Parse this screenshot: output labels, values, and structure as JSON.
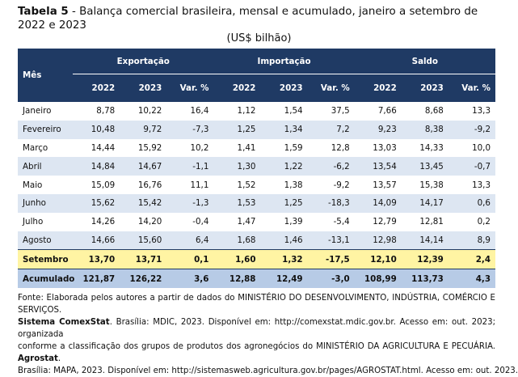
{
  "header": {
    "label": "Tabela 5",
    "title": " - Balança comercial brasileira, mensal e acumulado, janeiro a setembro de 2022 e 2023",
    "unit": "(US$ bilhão)"
  },
  "table": {
    "month_header": "Mês",
    "groups": [
      {
        "name": "Exportação",
        "columns": [
          "2022",
          "2023",
          "Var. %"
        ]
      },
      {
        "name": "Importação",
        "columns": [
          "2022",
          "2023",
          "Var. %"
        ]
      },
      {
        "name": "Saldo",
        "columns": [
          "2022",
          "2023",
          "Var. %"
        ]
      }
    ],
    "rows": [
      {
        "label": "Janeiro",
        "values": [
          "8,78",
          "10,22",
          "16,4",
          "1,12",
          "1,54",
          "37,5",
          "7,66",
          "8,68",
          "13,3"
        ]
      },
      {
        "label": "Fevereiro",
        "values": [
          "10,48",
          "9,72",
          "-7,3",
          "1,25",
          "1,34",
          "7,2",
          "9,23",
          "8,38",
          "-9,2"
        ]
      },
      {
        "label": "Março",
        "values": [
          "14,44",
          "15,92",
          "10,2",
          "1,41",
          "1,59",
          "12,8",
          "13,03",
          "14,33",
          "10,0"
        ]
      },
      {
        "label": "Abril",
        "values": [
          "14,84",
          "14,67",
          "-1,1",
          "1,30",
          "1,22",
          "-6,2",
          "13,54",
          "13,45",
          "-0,7"
        ]
      },
      {
        "label": "Maio",
        "values": [
          "15,09",
          "16,76",
          "11,1",
          "1,52",
          "1,38",
          "-9,2",
          "13,57",
          "15,38",
          "13,3"
        ]
      },
      {
        "label": "Junho",
        "values": [
          "15,62",
          "15,42",
          "-1,3",
          "1,53",
          "1,25",
          "-18,3",
          "14,09",
          "14,17",
          "0,6"
        ]
      },
      {
        "label": "Julho",
        "values": [
          "14,26",
          "14,20",
          "-0,4",
          "1,47",
          "1,39",
          "-5,4",
          "12,79",
          "12,81",
          "0,2"
        ]
      },
      {
        "label": "Agosto",
        "values": [
          "14,66",
          "15,60",
          "6,4",
          "1,68",
          "1,46",
          "-13,1",
          "12,98",
          "14,14",
          "8,9"
        ]
      },
      {
        "label": "Setembro",
        "values": [
          "13,70",
          "13,71",
          "0,1",
          "1,60",
          "1,32",
          "-17,5",
          "12,10",
          "12,39",
          "2,4"
        ]
      },
      {
        "label": "Acumulado",
        "values": [
          "121,87",
          "126,22",
          "3,6",
          "12,88",
          "12,49",
          "-3,0",
          "108,99",
          "113,73",
          "4,3"
        ]
      }
    ]
  },
  "footer": {
    "lines": [
      [
        {
          "text": "Fonte: Elaborada pelos autores a partir de dados do MINISTÉRIO DO DESENVOLVIMENTO, INDÚSTRIA, COMÉRCIO E SERVIÇOS.",
          "bold": false
        }
      ],
      [
        {
          "text": "Sistema ComexStat",
          "bold": true
        },
        {
          "text": ". Brasília: MDIC, 2023. Disponível em: http://comexstat.mdic.gov.br. Acesso em: out. 2023; organizada",
          "bold": false
        }
      ],
      [
        {
          "text": "conforme a classificação dos grupos de produtos dos agronegócios do MINISTÉRIO DA AGRICULTURA E PECUÁRIA. ",
          "bold": false
        },
        {
          "text": "Agrostat",
          "bold": true
        },
        {
          "text": ".",
          "bold": false
        }
      ],
      [
        {
          "text": "Brasília: MAPA, 2023. Disponível em: http://sistemasweb.agricultura.gov.br/pages/AGROSTAT.html. Acesso em: out. 2023.",
          "bold": false
        }
      ]
    ]
  }
}
